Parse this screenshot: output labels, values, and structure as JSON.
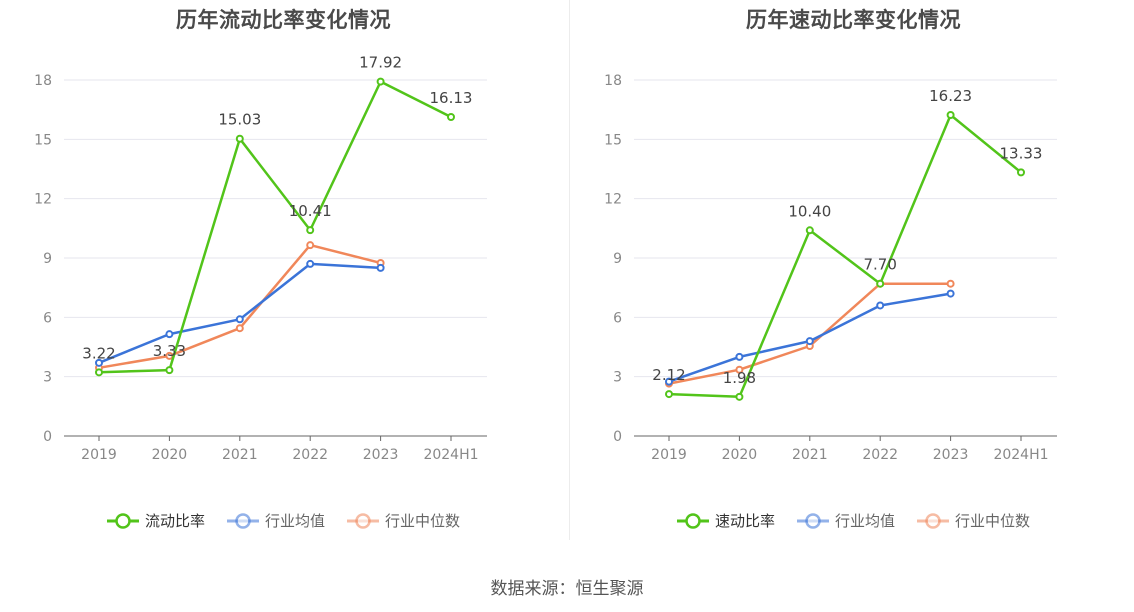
{
  "source_label": "数据来源：恒生聚源",
  "chart_data": [
    {
      "type": "line",
      "title": "历年流动比率变化情况",
      "categories": [
        "2019",
        "2020",
        "2021",
        "2022",
        "2023",
        "2024H1"
      ],
      "ylim": [
        0,
        18
      ],
      "yticks": [
        "0",
        "3",
        "6",
        "9",
        "12",
        "15",
        "18"
      ],
      "grid": true,
      "legend_position": "bottom",
      "series": [
        {
          "name": "流动比率",
          "color": "#52c41a",
          "values": [
            3.22,
            3.33,
            15.03,
            10.41,
            17.92,
            16.13
          ],
          "labels": [
            "3.22",
            "3.33",
            "15.03",
            "10.41",
            "17.92",
            "16.13"
          ]
        },
        {
          "name": "行业均值",
          "color": "#3b74d8",
          "values": [
            3.7,
            5.15,
            5.9,
            8.7,
            8.5,
            null
          ]
        },
        {
          "name": "行业中位数",
          "color": "#f0875a",
          "values": [
            3.45,
            4.05,
            5.45,
            9.65,
            8.75,
            null
          ]
        }
      ]
    },
    {
      "type": "line",
      "title": "历年速动比率变化情况",
      "categories": [
        "2019",
        "2020",
        "2021",
        "2022",
        "2023",
        "2024H1"
      ],
      "ylim": [
        0,
        18
      ],
      "yticks": [
        "0",
        "3",
        "6",
        "9",
        "12",
        "15",
        "18"
      ],
      "grid": true,
      "legend_position": "bottom",
      "series": [
        {
          "name": "速动比率",
          "color": "#52c41a",
          "values": [
            2.12,
            1.98,
            10.4,
            7.7,
            16.23,
            13.33
          ],
          "labels": [
            "2.12",
            "1.98",
            "10.40",
            "7.70",
            "16.23",
            "13.33"
          ]
        },
        {
          "name": "行业均值",
          "color": "#3b74d8",
          "values": [
            2.75,
            4.0,
            4.8,
            6.6,
            7.2,
            null
          ]
        },
        {
          "name": "行业中位数",
          "color": "#f0875a",
          "values": [
            2.65,
            3.35,
            4.55,
            7.7,
            7.7,
            null
          ]
        }
      ]
    }
  ]
}
